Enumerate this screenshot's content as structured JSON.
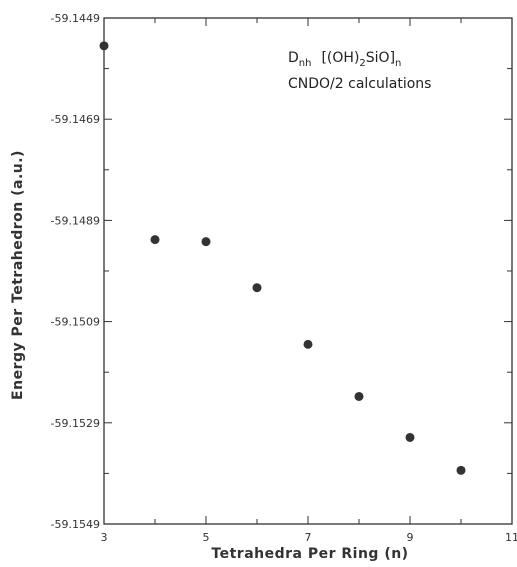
{
  "chart_data": {
    "type": "scatter",
    "title": "",
    "xlabel": "Tetrahedra Per Ring (n)",
    "ylabel": "Energy Per Tetrahedron (a.u.)",
    "xlim": [
      3,
      11
    ],
    "ylim": [
      -59.1549,
      -59.1449
    ],
    "xticks": [
      3,
      5,
      7,
      9,
      11
    ],
    "xtick_labels": [
      "3",
      "5",
      "7",
      "9",
      "11"
    ],
    "yticks": [
      -59.1449,
      -59.1469,
      -59.1489,
      -59.1509,
      -59.1529,
      -59.1549
    ],
    "ytick_labels": [
      "-59.1449",
      "-59.1469",
      "-59.1489",
      "-59.1509",
      "-59.1529",
      "-59.1549"
    ],
    "grid": false,
    "marker_color": "#333333",
    "series": [
      {
        "x": [
          3,
          4,
          5,
          6,
          7,
          8,
          9,
          10
        ],
        "y": [
          -59.14545,
          -59.14928,
          -59.14932,
          -59.15023,
          -59.15135,
          -59.15238,
          -59.15319,
          -59.15384
        ]
      }
    ],
    "annotation": {
      "line1_main": "D",
      "line1_sub": "nh",
      "line1_formula": "[(OH)",
      "line1_formula_sub": "2",
      "line1_formula_rest": "SiO]",
      "line1_n_sub": "n",
      "line2": "CNDO/2 calculations"
    }
  }
}
